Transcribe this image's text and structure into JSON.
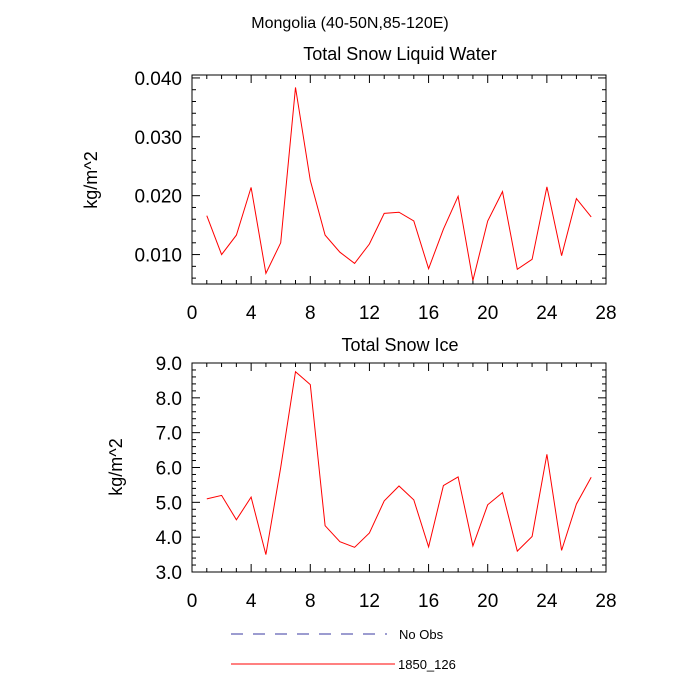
{
  "figure": {
    "title": "Mongolia (40-50N,85-120E)"
  },
  "chart_data": [
    {
      "type": "line",
      "title": "Total Snow Liquid Water",
      "xlabel": "",
      "ylabel": "kg/m^2",
      "xlim": [
        0,
        28
      ],
      "ylim": [
        0.005,
        0.0405
      ],
      "xticks": [
        "0",
        "4",
        "8",
        "12",
        "16",
        "20",
        "24",
        "28"
      ],
      "yticks": [
        "0.010",
        "0.020",
        "0.030",
        "0.040"
      ],
      "series": [
        {
          "name": "1850_126",
          "color": "#ff0000",
          "x": [
            1,
            2,
            3,
            4,
            5,
            6,
            7,
            8,
            9,
            10,
            11,
            12,
            13,
            14,
            15,
            16,
            17,
            18,
            19,
            20,
            21,
            22,
            23,
            24,
            25,
            26,
            27
          ],
          "values": [
            0.0166,
            0.01,
            0.0133,
            0.0214,
            0.0068,
            0.012,
            0.0384,
            0.0226,
            0.0133,
            0.0104,
            0.0085,
            0.0118,
            0.017,
            0.0172,
            0.0157,
            0.0076,
            0.0143,
            0.0199,
            0.0056,
            0.0157,
            0.0207,
            0.0075,
            0.0092,
            0.0215,
            0.0098,
            0.0195,
            0.0164
          ]
        }
      ]
    },
    {
      "type": "line",
      "title": "Total Snow Ice",
      "xlabel": "",
      "ylabel": "kg/m^2",
      "xlim": [
        0,
        28
      ],
      "ylim": [
        3.0,
        9.0
      ],
      "xticks": [
        "0",
        "4",
        "8",
        "12",
        "16",
        "20",
        "24",
        "28"
      ],
      "yticks": [
        "3.0",
        "4.0",
        "5.0",
        "6.0",
        "7.0",
        "8.0",
        "9.0"
      ],
      "series": [
        {
          "name": "1850_126",
          "color": "#ff0000",
          "x": [
            1,
            2,
            3,
            4,
            5,
            6,
            7,
            8,
            9,
            10,
            11,
            12,
            13,
            14,
            15,
            16,
            17,
            18,
            19,
            20,
            21,
            22,
            23,
            24,
            25,
            26,
            27
          ],
          "values": [
            5.1,
            5.2,
            4.5,
            5.15,
            3.5,
            6.0,
            8.75,
            8.38,
            4.33,
            3.87,
            3.71,
            4.12,
            5.04,
            5.47,
            5.07,
            3.72,
            5.48,
            5.73,
            3.75,
            4.93,
            5.28,
            3.6,
            4.02,
            6.38,
            3.62,
            4.95,
            5.72
          ]
        }
      ]
    }
  ],
  "legend": {
    "items": [
      {
        "label": "No Obs",
        "color": "#3a3aa0",
        "style": "dashed"
      },
      {
        "label": "1850_126",
        "color": "#ff0000",
        "style": "solid"
      }
    ]
  }
}
